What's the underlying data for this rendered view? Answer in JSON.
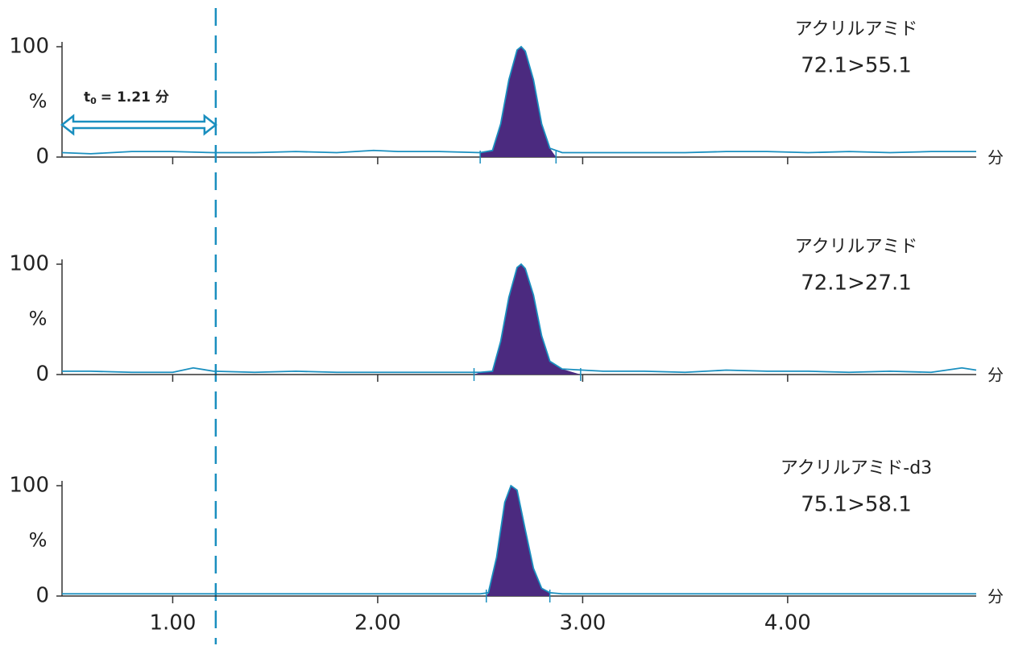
{
  "chart_data": [
    {
      "type": "line",
      "title": "アクリルアミド",
      "subtitle": "72.1>55.1",
      "ylabel": "%",
      "xlabel": "分",
      "x": [
        0.46,
        0.6,
        0.8,
        1.0,
        1.2,
        1.4,
        1.6,
        1.8,
        1.98,
        2.1,
        2.3,
        2.5,
        2.56,
        2.6,
        2.64,
        2.68,
        2.7,
        2.72,
        2.76,
        2.8,
        2.84,
        2.9,
        3.1,
        3.3,
        3.5,
        3.7,
        3.9,
        4.1,
        4.3,
        4.5,
        4.7,
        4.92
      ],
      "values": [
        4,
        3,
        5,
        5,
        4,
        4,
        5,
        4,
        6,
        5,
        5,
        4,
        6,
        30,
        70,
        97,
        100,
        96,
        70,
        30,
        8,
        4,
        4,
        4,
        4,
        5,
        5,
        4,
        5,
        4,
        5,
        5
      ],
      "integration": [
        2.5,
        2.87
      ],
      "color": "#1a8fbf",
      "fill_color": "#4b2a7f",
      "xlim": [
        0.46,
        4.92
      ],
      "xticks": [
        1,
        2,
        3,
        4
      ],
      "ylim": [
        0,
        100
      ],
      "yticks": [
        0,
        100
      ],
      "annotation": {
        "x": 1.21,
        "label": "t",
        "label_sub": "0",
        "label_rest": "= 1.21 分"
      }
    },
    {
      "type": "line",
      "title": "アクリルアミド",
      "subtitle": "72.1>27.1",
      "ylabel": "%",
      "xlabel": "分",
      "x": [
        0.46,
        0.6,
        0.8,
        1.0,
        1.1,
        1.2,
        1.4,
        1.6,
        1.8,
        1.98,
        2.1,
        2.3,
        2.5,
        2.56,
        2.6,
        2.64,
        2.68,
        2.7,
        2.72,
        2.76,
        2.8,
        2.84,
        2.9,
        3.1,
        3.3,
        3.5,
        3.7,
        3.9,
        4.1,
        4.3,
        4.5,
        4.7,
        4.85,
        4.92
      ],
      "values": [
        3,
        3,
        2,
        2,
        6,
        3,
        2,
        3,
        2,
        2,
        2,
        2,
        2,
        3,
        30,
        70,
        97,
        100,
        96,
        72,
        35,
        12,
        5,
        3,
        3,
        2,
        4,
        3,
        3,
        2,
        3,
        2,
        6,
        4
      ],
      "integration": [
        2.47,
        2.99
      ],
      "color": "#1a8fbf",
      "fill_color": "#4b2a7f",
      "xlim": [
        0.46,
        4.92
      ],
      "xticks": [
        1,
        2,
        3,
        4
      ],
      "ylim": [
        0,
        100
      ],
      "yticks": [
        0,
        100
      ]
    },
    {
      "type": "line",
      "title": "アクリルアミド-d3",
      "subtitle": "75.1>58.1",
      "ylabel": "%",
      "xlabel": "分",
      "x": [
        0.46,
        0.6,
        0.8,
        1.0,
        1.2,
        1.4,
        1.6,
        1.8,
        1.98,
        2.1,
        2.3,
        2.5,
        2.54,
        2.58,
        2.62,
        2.65,
        2.68,
        2.72,
        2.76,
        2.8,
        2.84,
        2.9,
        3.1,
        3.3,
        3.5,
        3.7,
        3.9,
        4.1,
        4.3,
        4.5,
        4.7,
        4.92
      ],
      "values": [
        2,
        2,
        2,
        2,
        2,
        2,
        2,
        2,
        2,
        2,
        2,
        2,
        3,
        35,
        85,
        100,
        96,
        60,
        25,
        7,
        3,
        2,
        2,
        2,
        2,
        2,
        2,
        2,
        2,
        2,
        2,
        2
      ],
      "integration": [
        2.53,
        2.84
      ],
      "color": "#1a8fbf",
      "fill_color": "#4b2a7f",
      "xlim": [
        0.46,
        4.92
      ],
      "ylim": [
        0,
        100
      ],
      "yticks": [
        0,
        100
      ],
      "xticks": [
        {
          "value": 1,
          "label": "1.00"
        },
        {
          "value": 2,
          "label": "2.00"
        },
        {
          "value": 3,
          "label": "3.00"
        },
        {
          "value": 4,
          "label": "4.00"
        }
      ]
    }
  ]
}
